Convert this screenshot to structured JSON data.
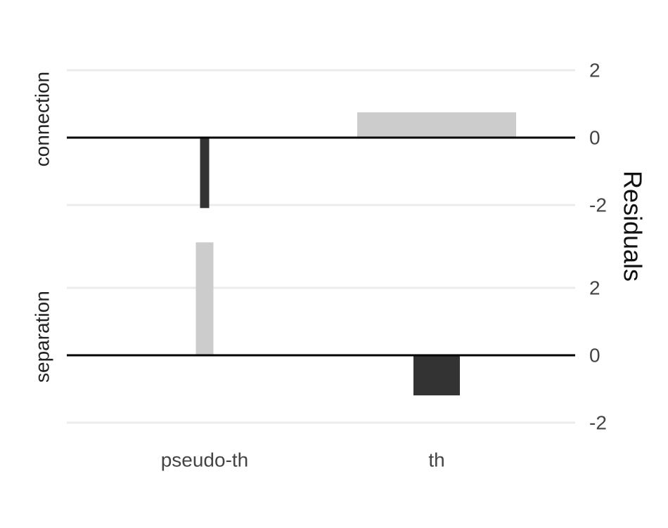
{
  "chart_data": {
    "type": "bar",
    "categories": [
      "pseudo-th",
      "th"
    ],
    "y_label": "Residuals",
    "ylim": [
      -2.3,
      3.4
    ],
    "yticks": [
      -2,
      0,
      2
    ],
    "grid": true,
    "facets": [
      {
        "title": "connection",
        "values": [
          -2.09,
          0.75
        ],
        "colors": [
          "#333333",
          "#cccccc"
        ]
      },
      {
        "title": "separation",
        "values": [
          3.35,
          -1.19
        ],
        "colors": [
          "#cccccc",
          "#333333"
        ]
      }
    ]
  }
}
